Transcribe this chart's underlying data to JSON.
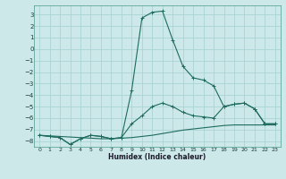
{
  "xlabel": "Humidex (Indice chaleur)",
  "background_color": "#cce8e8",
  "grid_color": "#aad4d4",
  "line_color": "#1e6b5e",
  "xlim": [
    -0.5,
    23.5
  ],
  "ylim": [
    -8.5,
    3.8
  ],
  "xticks": [
    0,
    1,
    2,
    3,
    4,
    5,
    6,
    7,
    8,
    9,
    10,
    11,
    12,
    13,
    14,
    15,
    16,
    17,
    18,
    19,
    20,
    21,
    22,
    23
  ],
  "yticks": [
    3,
    2,
    1,
    0,
    -1,
    -2,
    -3,
    -4,
    -5,
    -6,
    -7,
    -8
  ],
  "line1_x": [
    0,
    1,
    2,
    3,
    4,
    5,
    6,
    7,
    8,
    9,
    10,
    11,
    12,
    13,
    14,
    15,
    16,
    17,
    18,
    19,
    20,
    21,
    22,
    23
  ],
  "line1_y": [
    -7.5,
    -7.55,
    -7.6,
    -7.65,
    -7.7,
    -7.75,
    -7.8,
    -7.8,
    -7.75,
    -7.7,
    -7.6,
    -7.5,
    -7.35,
    -7.2,
    -7.05,
    -6.95,
    -6.85,
    -6.75,
    -6.65,
    -6.6,
    -6.6,
    -6.6,
    -6.6,
    -6.6
  ],
  "line2_x": [
    0,
    1,
    2,
    3,
    4,
    5,
    6,
    7,
    8,
    9,
    10,
    11,
    12,
    13,
    14,
    15,
    16,
    17,
    18,
    19,
    20,
    21,
    22,
    23
  ],
  "line2_y": [
    -7.5,
    -7.6,
    -7.7,
    -8.3,
    -7.8,
    -7.5,
    -7.6,
    -7.8,
    -7.7,
    -6.5,
    -5.8,
    -5.0,
    -4.7,
    -5.0,
    -5.5,
    -5.8,
    -5.9,
    -6.0,
    -5.0,
    -4.8,
    -4.7,
    -5.2,
    -6.5,
    -6.5
  ],
  "line3_x": [
    0,
    1,
    2,
    3,
    4,
    5,
    6,
    7,
    8,
    9,
    10,
    11,
    12,
    13,
    14,
    15,
    16,
    17,
    18,
    19,
    20,
    21,
    22,
    23
  ],
  "line3_y": [
    -7.5,
    -7.6,
    -7.7,
    -8.3,
    -7.8,
    -7.5,
    -7.6,
    -7.8,
    -7.7,
    -3.6,
    2.7,
    3.2,
    3.3,
    0.8,
    -1.5,
    -2.5,
    -2.7,
    -3.2,
    -5.0,
    -4.8,
    -4.7,
    -5.2,
    -6.5,
    -6.5
  ]
}
